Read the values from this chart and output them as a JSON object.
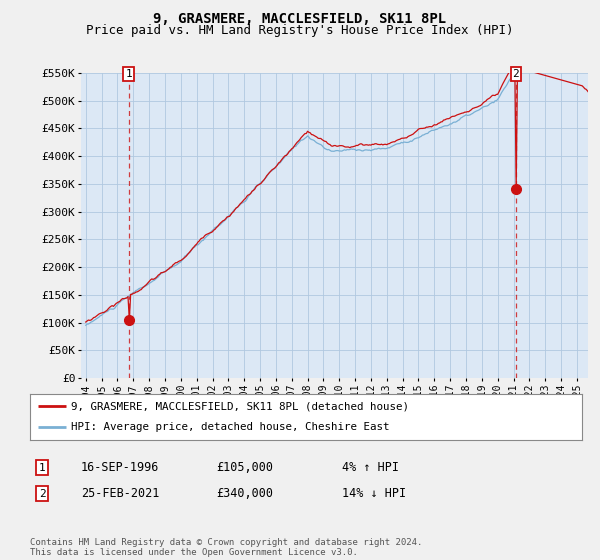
{
  "title": "9, GRASMERE, MACCLESFIELD, SK11 8PL",
  "subtitle": "Price paid vs. HM Land Registry's House Price Index (HPI)",
  "ylim": [
    0,
    550000
  ],
  "yticks": [
    0,
    50000,
    100000,
    150000,
    200000,
    250000,
    300000,
    350000,
    400000,
    450000,
    500000,
    550000
  ],
  "ytick_labels": [
    "£0",
    "£50K",
    "£100K",
    "£150K",
    "£200K",
    "£250K",
    "£300K",
    "£350K",
    "£400K",
    "£450K",
    "£500K",
    "£550K"
  ],
  "background_color": "#f0f0f0",
  "plot_bg_color": "#dce8f5",
  "grid_color": "#b0c8e0",
  "hpi_color": "#7ab0d4",
  "price_color": "#cc1111",
  "sale1_date_x": 1996.71,
  "sale1_price": 105000,
  "sale2_date_x": 2021.15,
  "sale2_price": 340000,
  "legend_entries": [
    "9, GRASMERE, MACCLESFIELD, SK11 8PL (detached house)",
    "HPI: Average price, detached house, Cheshire East"
  ],
  "table_rows": [
    [
      "1",
      "16-SEP-1996",
      "£105,000",
      "4% ↑ HPI"
    ],
    [
      "2",
      "25-FEB-2021",
      "£340,000",
      "14% ↓ HPI"
    ]
  ],
  "footnote": "Contains HM Land Registry data © Crown copyright and database right 2024.\nThis data is licensed under the Open Government Licence v3.0.",
  "title_fontsize": 10,
  "subtitle_fontsize": 9,
  "tick_fontsize": 8,
  "xtick_years": [
    1994,
    1995,
    1996,
    1997,
    1998,
    1999,
    2000,
    2001,
    2002,
    2003,
    2004,
    2005,
    2006,
    2007,
    2008,
    2009,
    2010,
    2011,
    2012,
    2013,
    2014,
    2015,
    2016,
    2017,
    2018,
    2019,
    2020,
    2021,
    2022,
    2023,
    2024,
    2025
  ]
}
